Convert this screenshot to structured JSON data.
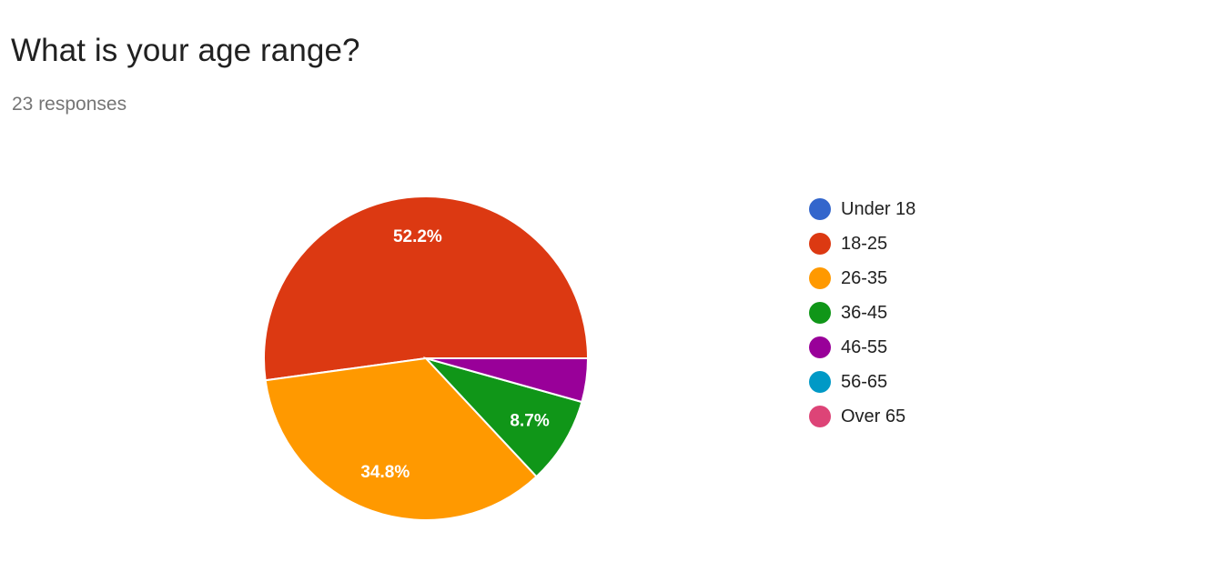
{
  "question": {
    "title": "What is your age range?",
    "responses_label": "23 responses"
  },
  "chart_data": {
    "type": "pie",
    "title": "What is your age range?",
    "subtitle": "23 responses",
    "legend_position": "right",
    "categories": [
      "Under 18",
      "18-25",
      "26-35",
      "36-45",
      "46-55",
      "56-65",
      "Over 65"
    ],
    "values": [
      0,
      12,
      8,
      2,
      1,
      0,
      0
    ],
    "percent_labels": [
      "",
      "52.2%",
      "34.8%",
      "8.7%",
      "",
      "",
      ""
    ],
    "colors": [
      "#3366cc",
      "#dc3912",
      "#ff9900",
      "#109618",
      "#990099",
      "#0099c6",
      "#dd4477"
    ]
  }
}
